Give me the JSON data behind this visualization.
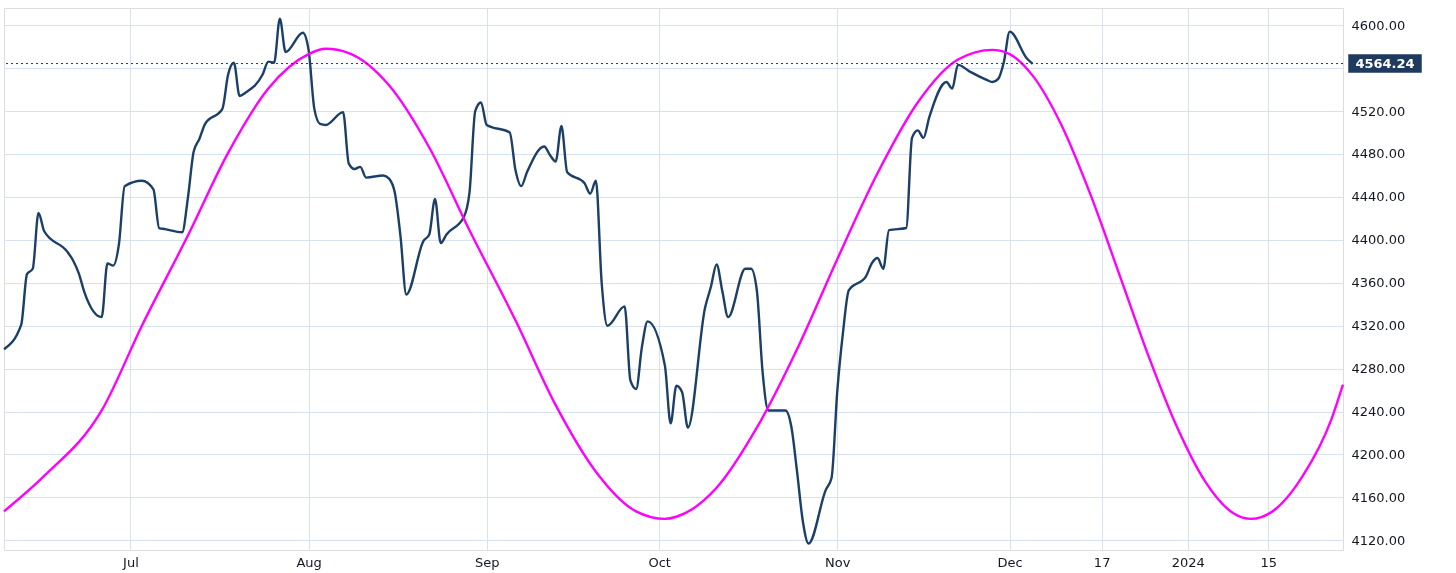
{
  "chart_data": {
    "type": "line",
    "xlim": [
      "2023-06-09",
      "2024-01-28"
    ],
    "xticks": [
      {
        "value": "2023-07-01",
        "label": "Jul"
      },
      {
        "value": "2023-08-01",
        "label": "Aug"
      },
      {
        "value": "2023-09-01",
        "label": "Sep"
      },
      {
        "value": "2023-10-01",
        "label": "Oct"
      },
      {
        "value": "2023-11-01",
        "label": "Nov"
      },
      {
        "value": "2023-12-01",
        "label": "Dec"
      },
      {
        "value": "2023-12-17",
        "label": "17"
      },
      {
        "value": "2024-01-01",
        "label": "2024"
      },
      {
        "value": "2024-01-15",
        "label": "15"
      }
    ],
    "ylim": [
      4111,
      4616
    ],
    "yticks": [
      {
        "value": 4120,
        "label": "4120.00"
      },
      {
        "value": 4160,
        "label": "4160.00"
      },
      {
        "value": 4200,
        "label": "4200.00"
      },
      {
        "value": 4240,
        "label": "4240.00"
      },
      {
        "value": 4280,
        "label": "4280.00"
      },
      {
        "value": 4320,
        "label": "4320.00"
      },
      {
        "value": 4360,
        "label": "4360.00"
      },
      {
        "value": 4400,
        "label": "4400.00"
      },
      {
        "value": 4440,
        "label": "4440.00"
      },
      {
        "value": 4480,
        "label": "4480.00"
      },
      {
        "value": 4520,
        "label": "4520.00"
      },
      {
        "value": 4560,
        "label": null
      },
      {
        "value": 4600,
        "label": "4600.00"
      }
    ],
    "grid": true,
    "marker": "none",
    "line_style": "solid",
    "ref_lines": [
      {
        "axis": "y",
        "value": 4564.24,
        "label": "4564.24",
        "color": "#1e3a5f",
        "line_style": "dotted"
      }
    ],
    "series": [
      {
        "color": "#1b3f66",
        "x": [
          "2023-06-09",
          "2023-06-12",
          "2023-06-13",
          "2023-06-14",
          "2023-06-15",
          "2023-06-16",
          "2023-06-20",
          "2023-06-21",
          "2023-06-22",
          "2023-06-23",
          "2023-06-26",
          "2023-06-27",
          "2023-06-28",
          "2023-06-29",
          "2023-06-30",
          "2023-07-03",
          "2023-07-05",
          "2023-07-06",
          "2023-07-07",
          "2023-07-10",
          "2023-07-11",
          "2023-07-12",
          "2023-07-13",
          "2023-07-14",
          "2023-07-17",
          "2023-07-18",
          "2023-07-19",
          "2023-07-20",
          "2023-07-21",
          "2023-07-24",
          "2023-07-25",
          "2023-07-26",
          "2023-07-27",
          "2023-07-28",
          "2023-07-31",
          "2023-08-01",
          "2023-08-02",
          "2023-08-03",
          "2023-08-04",
          "2023-08-07",
          "2023-08-08",
          "2023-08-09",
          "2023-08-10",
          "2023-08-11",
          "2023-08-14",
          "2023-08-15",
          "2023-08-16",
          "2023-08-17",
          "2023-08-18",
          "2023-08-21",
          "2023-08-22",
          "2023-08-23",
          "2023-08-24",
          "2023-08-25",
          "2023-08-28",
          "2023-08-29",
          "2023-08-30",
          "2023-08-31",
          "2023-09-01",
          "2023-09-05",
          "2023-09-06",
          "2023-09-07",
          "2023-09-08",
          "2023-09-11",
          "2023-09-12",
          "2023-09-13",
          "2023-09-14",
          "2023-09-15",
          "2023-09-18",
          "2023-09-19",
          "2023-09-20",
          "2023-09-21",
          "2023-09-22",
          "2023-09-25",
          "2023-09-26",
          "2023-09-27",
          "2023-09-28",
          "2023-09-29",
          "2023-10-02",
          "2023-10-03",
          "2023-10-04",
          "2023-10-05",
          "2023-10-06",
          "2023-10-09",
          "2023-10-10",
          "2023-10-11",
          "2023-10-12",
          "2023-10-13",
          "2023-10-16",
          "2023-10-17",
          "2023-10-18",
          "2023-10-19",
          "2023-10-20",
          "2023-10-23",
          "2023-10-24",
          "2023-10-25",
          "2023-10-26",
          "2023-10-27",
          "2023-10-30",
          "2023-10-31",
          "2023-11-01",
          "2023-11-02",
          "2023-11-03",
          "2023-11-06",
          "2023-11-07",
          "2023-11-08",
          "2023-11-09",
          "2023-11-10",
          "2023-11-13",
          "2023-11-14",
          "2023-11-15",
          "2023-11-16",
          "2023-11-17",
          "2023-11-20",
          "2023-11-21",
          "2023-11-22",
          "2023-11-24",
          "2023-11-27",
          "2023-11-28",
          "2023-11-29",
          "2023-11-30",
          "2023-12-01",
          "2023-12-04",
          "2023-12-05"
        ],
        "values": [
          4298,
          4321,
          4368,
          4373,
          4425,
          4408,
          4389,
          4381,
          4369,
          4351,
          4328,
          4378,
          4376,
          4396,
          4450,
          4455,
          4447,
          4411,
          4410,
          4407,
          4439,
          4482,
          4494,
          4508,
          4522,
          4554,
          4565,
          4534,
          4537,
          4554,
          4566,
          4565,
          4606,
          4575,
          4593,
          4577,
          4522,
          4508,
          4507,
          4519,
          4471,
          4466,
          4468,
          4458,
          4460,
          4457,
          4444,
          4403,
          4349,
          4399,
          4405,
          4438,
          4397,
          4405,
          4421,
          4444,
          4520,
          4528,
          4507,
          4500,
          4465,
          4450,
          4463,
          4487,
          4479,
          4473,
          4506,
          4463,
          4453,
          4443,
          4455,
          4360,
          4320,
          4338,
          4269,
          4261,
          4300,
          4324,
          4283,
          4229,
          4264,
          4258,
          4225,
          4337,
          4356,
          4377,
          4352,
          4328,
          4373,
          4373,
          4353,
          4277,
          4241,
          4241,
          4226,
          4184,
          4138,
          4117,
          4167,
          4178,
          4259,
          4314,
          4353,
          4366,
          4378,
          4383,
          4373,
          4409,
          4411,
          4495,
          4502,
          4495,
          4514,
          4547,
          4541,
          4563,
          4557,
          4549,
          4547,
          4550,
          4566,
          4594,
          4569,
          4564
        ]
      },
      {
        "color": "#ff00ff",
        "x": [
          "2023-06-09",
          "2023-06-16",
          "2023-06-26",
          "2023-07-03",
          "2023-07-11",
          "2023-07-18",
          "2023-07-25",
          "2023-08-01",
          "2023-08-04",
          "2023-08-08",
          "2023-08-15",
          "2023-08-22",
          "2023-08-29",
          "2023-09-06",
          "2023-09-13",
          "2023-09-20",
          "2023-09-27",
          "2023-10-02",
          "2023-10-04",
          "2023-10-11",
          "2023-10-18",
          "2023-10-25",
          "2023-11-01",
          "2023-11-08",
          "2023-11-15",
          "2023-11-22",
          "2023-11-28",
          "2023-12-01",
          "2023-12-05",
          "2023-12-10",
          "2023-12-15",
          "2023-12-20",
          "2023-12-25",
          "2023-12-30",
          "2024-01-04",
          "2024-01-09",
          "2024-01-12",
          "2024-01-16",
          "2024-01-21",
          "2024-01-26",
          "2024-01-28"
        ],
        "values": [
          4147,
          4180,
          4241,
          4320,
          4404,
          4481,
          4541,
          4573,
          4578,
          4574,
          4544,
          4486,
          4409,
          4325,
          4246,
          4184,
          4147,
          4140,
          4142,
          4169,
          4225,
          4298,
          4382,
          4462,
          4528,
          4568,
          4577,
          4573,
          4553,
          4507,
          4443,
          4369,
          4294,
          4227,
          4175,
          4145,
          4140,
          4148,
          4180,
          4233,
          4265
        ]
      }
    ]
  }
}
